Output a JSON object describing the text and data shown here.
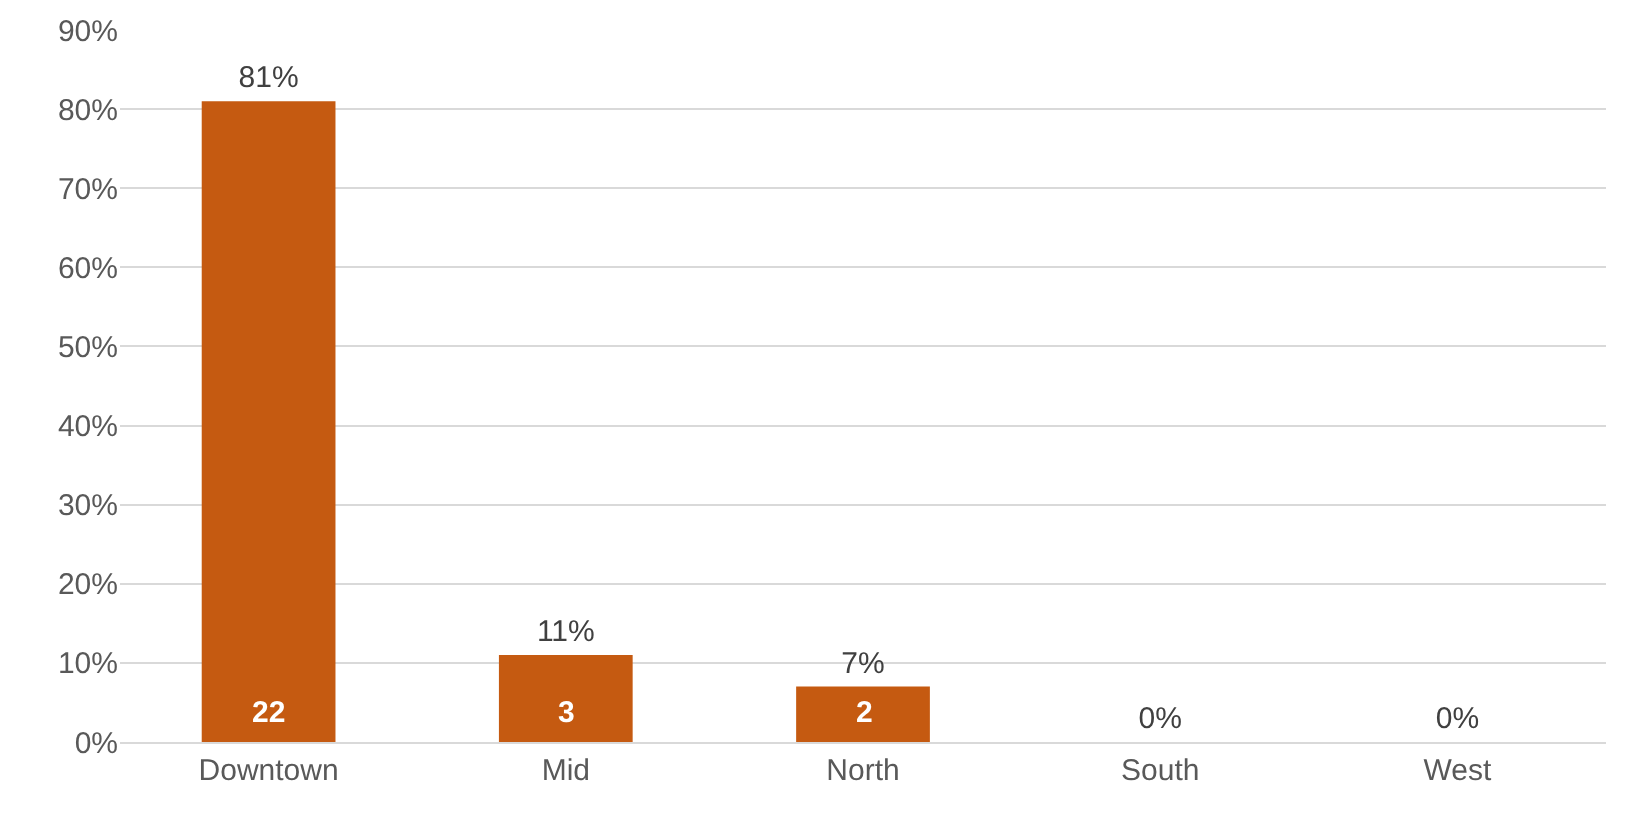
{
  "chart_data": {
    "type": "bar",
    "categories": [
      "Downtown",
      "Mid",
      "North",
      "South",
      "West"
    ],
    "values": [
      81,
      11,
      7,
      0,
      0
    ],
    "color": "#c55a11",
    "value_labels": [
      "81%",
      "11%",
      "7%",
      "0%",
      "0%"
    ],
    "annotations": [
      "22",
      "3",
      "2"
    ],
    "ylim": [
      0,
      90
    ],
    "yticks": [
      {
        "value": 0,
        "label": "0%"
      },
      {
        "value": 10,
        "label": "10%"
      },
      {
        "value": 20,
        "label": "20%"
      },
      {
        "value": 30,
        "label": "30%"
      },
      {
        "value": 40,
        "label": "40%"
      },
      {
        "value": 50,
        "label": "50%"
      },
      {
        "value": 60,
        "label": "60%"
      },
      {
        "value": 70,
        "label": "70%"
      },
      {
        "value": 80,
        "label": "80%"
      },
      {
        "value": 90,
        "label": "90%"
      }
    ],
    "grid": "y",
    "legend": false
  }
}
